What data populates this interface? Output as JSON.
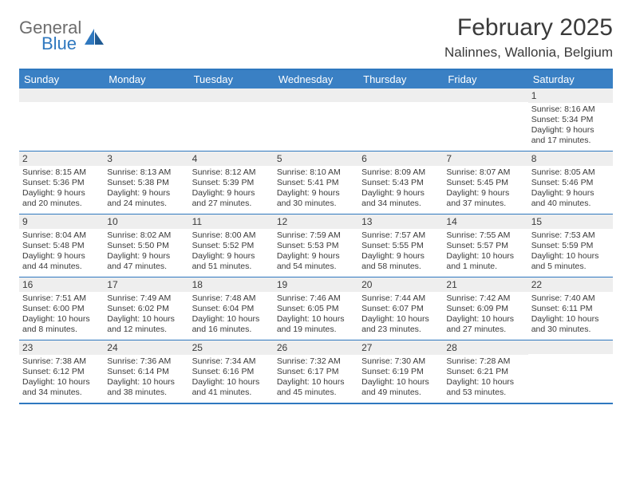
{
  "colors": {
    "accent": "#2f78bf",
    "header_bg": "#3a80c4",
    "band": "#eeeeee",
    "text": "#3a3a3a",
    "logo_gray": "#6d6d6d"
  },
  "logo": {
    "line1": "General",
    "line2": "Blue"
  },
  "title": "February 2025",
  "location": "Nalinnes, Wallonia, Belgium",
  "days_of_week": [
    "Sunday",
    "Monday",
    "Tuesday",
    "Wednesday",
    "Thursday",
    "Friday",
    "Saturday"
  ],
  "weeks": [
    [
      {
        "day": "",
        "sunrise": "",
        "sunset": "",
        "daylight": ""
      },
      {
        "day": "",
        "sunrise": "",
        "sunset": "",
        "daylight": ""
      },
      {
        "day": "",
        "sunrise": "",
        "sunset": "",
        "daylight": ""
      },
      {
        "day": "",
        "sunrise": "",
        "sunset": "",
        "daylight": ""
      },
      {
        "day": "",
        "sunrise": "",
        "sunset": "",
        "daylight": ""
      },
      {
        "day": "",
        "sunrise": "",
        "sunset": "",
        "daylight": ""
      },
      {
        "day": "1",
        "sunrise": "Sunrise: 8:16 AM",
        "sunset": "Sunset: 5:34 PM",
        "daylight": "Daylight: 9 hours and 17 minutes."
      }
    ],
    [
      {
        "day": "2",
        "sunrise": "Sunrise: 8:15 AM",
        "sunset": "Sunset: 5:36 PM",
        "daylight": "Daylight: 9 hours and 20 minutes."
      },
      {
        "day": "3",
        "sunrise": "Sunrise: 8:13 AM",
        "sunset": "Sunset: 5:38 PM",
        "daylight": "Daylight: 9 hours and 24 minutes."
      },
      {
        "day": "4",
        "sunrise": "Sunrise: 8:12 AM",
        "sunset": "Sunset: 5:39 PM",
        "daylight": "Daylight: 9 hours and 27 minutes."
      },
      {
        "day": "5",
        "sunrise": "Sunrise: 8:10 AM",
        "sunset": "Sunset: 5:41 PM",
        "daylight": "Daylight: 9 hours and 30 minutes."
      },
      {
        "day": "6",
        "sunrise": "Sunrise: 8:09 AM",
        "sunset": "Sunset: 5:43 PM",
        "daylight": "Daylight: 9 hours and 34 minutes."
      },
      {
        "day": "7",
        "sunrise": "Sunrise: 8:07 AM",
        "sunset": "Sunset: 5:45 PM",
        "daylight": "Daylight: 9 hours and 37 minutes."
      },
      {
        "day": "8",
        "sunrise": "Sunrise: 8:05 AM",
        "sunset": "Sunset: 5:46 PM",
        "daylight": "Daylight: 9 hours and 40 minutes."
      }
    ],
    [
      {
        "day": "9",
        "sunrise": "Sunrise: 8:04 AM",
        "sunset": "Sunset: 5:48 PM",
        "daylight": "Daylight: 9 hours and 44 minutes."
      },
      {
        "day": "10",
        "sunrise": "Sunrise: 8:02 AM",
        "sunset": "Sunset: 5:50 PM",
        "daylight": "Daylight: 9 hours and 47 minutes."
      },
      {
        "day": "11",
        "sunrise": "Sunrise: 8:00 AM",
        "sunset": "Sunset: 5:52 PM",
        "daylight": "Daylight: 9 hours and 51 minutes."
      },
      {
        "day": "12",
        "sunrise": "Sunrise: 7:59 AM",
        "sunset": "Sunset: 5:53 PM",
        "daylight": "Daylight: 9 hours and 54 minutes."
      },
      {
        "day": "13",
        "sunrise": "Sunrise: 7:57 AM",
        "sunset": "Sunset: 5:55 PM",
        "daylight": "Daylight: 9 hours and 58 minutes."
      },
      {
        "day": "14",
        "sunrise": "Sunrise: 7:55 AM",
        "sunset": "Sunset: 5:57 PM",
        "daylight": "Daylight: 10 hours and 1 minute."
      },
      {
        "day": "15",
        "sunrise": "Sunrise: 7:53 AM",
        "sunset": "Sunset: 5:59 PM",
        "daylight": "Daylight: 10 hours and 5 minutes."
      }
    ],
    [
      {
        "day": "16",
        "sunrise": "Sunrise: 7:51 AM",
        "sunset": "Sunset: 6:00 PM",
        "daylight": "Daylight: 10 hours and 8 minutes."
      },
      {
        "day": "17",
        "sunrise": "Sunrise: 7:49 AM",
        "sunset": "Sunset: 6:02 PM",
        "daylight": "Daylight: 10 hours and 12 minutes."
      },
      {
        "day": "18",
        "sunrise": "Sunrise: 7:48 AM",
        "sunset": "Sunset: 6:04 PM",
        "daylight": "Daylight: 10 hours and 16 minutes."
      },
      {
        "day": "19",
        "sunrise": "Sunrise: 7:46 AM",
        "sunset": "Sunset: 6:05 PM",
        "daylight": "Daylight: 10 hours and 19 minutes."
      },
      {
        "day": "20",
        "sunrise": "Sunrise: 7:44 AM",
        "sunset": "Sunset: 6:07 PM",
        "daylight": "Daylight: 10 hours and 23 minutes."
      },
      {
        "day": "21",
        "sunrise": "Sunrise: 7:42 AM",
        "sunset": "Sunset: 6:09 PM",
        "daylight": "Daylight: 10 hours and 27 minutes."
      },
      {
        "day": "22",
        "sunrise": "Sunrise: 7:40 AM",
        "sunset": "Sunset: 6:11 PM",
        "daylight": "Daylight: 10 hours and 30 minutes."
      }
    ],
    [
      {
        "day": "23",
        "sunrise": "Sunrise: 7:38 AM",
        "sunset": "Sunset: 6:12 PM",
        "daylight": "Daylight: 10 hours and 34 minutes."
      },
      {
        "day": "24",
        "sunrise": "Sunrise: 7:36 AM",
        "sunset": "Sunset: 6:14 PM",
        "daylight": "Daylight: 10 hours and 38 minutes."
      },
      {
        "day": "25",
        "sunrise": "Sunrise: 7:34 AM",
        "sunset": "Sunset: 6:16 PM",
        "daylight": "Daylight: 10 hours and 41 minutes."
      },
      {
        "day": "26",
        "sunrise": "Sunrise: 7:32 AM",
        "sunset": "Sunset: 6:17 PM",
        "daylight": "Daylight: 10 hours and 45 minutes."
      },
      {
        "day": "27",
        "sunrise": "Sunrise: 7:30 AM",
        "sunset": "Sunset: 6:19 PM",
        "daylight": "Daylight: 10 hours and 49 minutes."
      },
      {
        "day": "28",
        "sunrise": "Sunrise: 7:28 AM",
        "sunset": "Sunset: 6:21 PM",
        "daylight": "Daylight: 10 hours and 53 minutes."
      },
      {
        "day": "",
        "sunrise": "",
        "sunset": "",
        "daylight": ""
      }
    ]
  ]
}
